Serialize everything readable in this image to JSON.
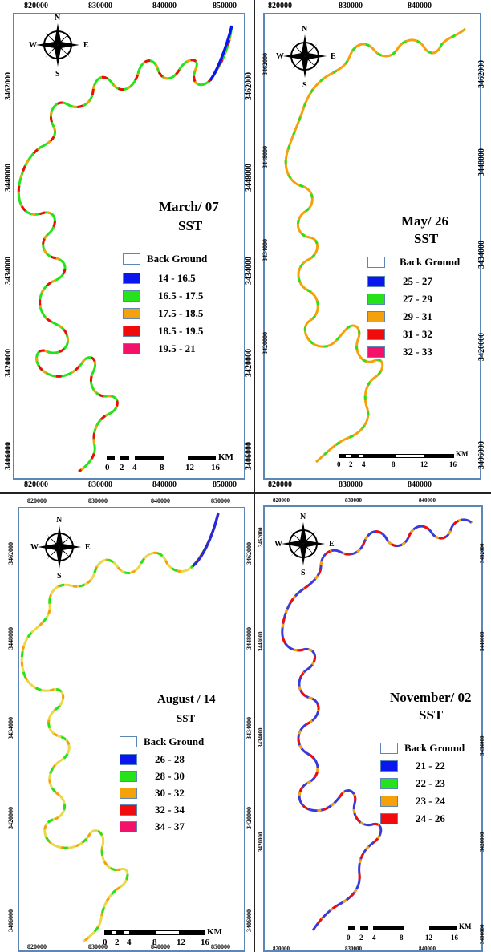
{
  "panels": [
    {
      "id": "march",
      "title": "March/ 07",
      "subtitle": "SST",
      "top_x_ticks": [
        "820000",
        "830000",
        "840000",
        "850000"
      ],
      "bottom_x_ticks": [
        "820000",
        "830000",
        "840000",
        "850000"
      ],
      "y_ticks": [
        "3462000",
        "3448000",
        "3434000",
        "3420000",
        "3406000"
      ],
      "legend": [
        {
          "label": "Back Ground",
          "color": "#ffffff"
        },
        {
          "label": "14 - 16.5",
          "color": "#0a16f0"
        },
        {
          "label": "16.5 - 17.5",
          "color": "#26e21a"
        },
        {
          "label": "17.5 - 18.5",
          "color": "#f5a10c"
        },
        {
          "label": "18.5 - 19.5",
          "color": "#f00c0c"
        },
        {
          "label": "19.5 - 21",
          "color": "#f4116a"
        }
      ]
    },
    {
      "id": "may",
      "title": "May/ 26",
      "subtitle": "SST",
      "top_x_ticks": [
        "820000",
        "830000",
        "840000"
      ],
      "bottom_x_ticks": [
        "820000",
        "830000",
        "840000"
      ],
      "y_ticks": [
        "3462000",
        "3448000",
        "3434000",
        "3420000",
        "3406000"
      ],
      "legend": [
        {
          "label": "Back Ground",
          "color": "#ffffff"
        },
        {
          "label": "25 - 27",
          "color": "#0a16f0"
        },
        {
          "label": "27 - 29",
          "color": "#26e21a"
        },
        {
          "label": "29 - 31",
          "color": "#f5a10c"
        },
        {
          "label": "31 - 32",
          "color": "#f00c0c"
        },
        {
          "label": "32 - 33",
          "color": "#f4116a"
        }
      ]
    },
    {
      "id": "august",
      "title": "August / 14",
      "subtitle": "SST",
      "top_x_ticks": [
        "820000",
        "830000",
        "840000",
        "850000"
      ],
      "bottom_x_ticks": [
        "820000",
        "830000",
        "840000",
        "850000"
      ],
      "y_ticks": [
        "3462000",
        "3448000",
        "3434000",
        "3420000",
        "3406000"
      ],
      "legend": [
        {
          "label": "Back Ground",
          "color": "#ffffff"
        },
        {
          "label": "26 - 28",
          "color": "#0a16f0"
        },
        {
          "label": "28 - 30",
          "color": "#26e21a"
        },
        {
          "label": "30 - 32",
          "color": "#f5a10c"
        },
        {
          "label": "32 - 34",
          "color": "#f00c0c"
        },
        {
          "label": "34 - 37",
          "color": "#f4116a"
        }
      ]
    },
    {
      "id": "november",
      "title": "November/ 02",
      "subtitle": "SST",
      "top_x_ticks": [
        "820000",
        "830000",
        "840000"
      ],
      "bottom_x_ticks": [
        "820000",
        "830000",
        "840000"
      ],
      "y_ticks": [
        "3462000",
        "3448000",
        "3434000",
        "3420000",
        "3406000"
      ],
      "legend": [
        {
          "label": "Back Ground",
          "color": "#ffffff"
        },
        {
          "label": "21 - 22",
          "color": "#0a16f0"
        },
        {
          "label": "22 - 23",
          "color": "#26e21a"
        },
        {
          "label": "23 - 24",
          "color": "#f5a10c"
        },
        {
          "label": "24 - 26",
          "color": "#f00c0c"
        }
      ]
    }
  ],
  "scale_bar": {
    "labels": [
      "0",
      "2",
      "4",
      "8",
      "12",
      "16"
    ],
    "unit": "KM"
  },
  "compass": {
    "n": "N",
    "s": "S",
    "e": "E",
    "w": "W"
  },
  "frame_color": "#5b86b5",
  "river_colors": {
    "march": [
      "#26e21a",
      "#f5a10c",
      "#f00c0c"
    ],
    "may": [
      "#f5a10c",
      "#26e21a"
    ],
    "august": [
      "#e8d84a",
      "#f5a10c",
      "#26e21a"
    ],
    "november": [
      "#3a3ad8",
      "#f5a10c",
      "#f00c0c"
    ]
  }
}
